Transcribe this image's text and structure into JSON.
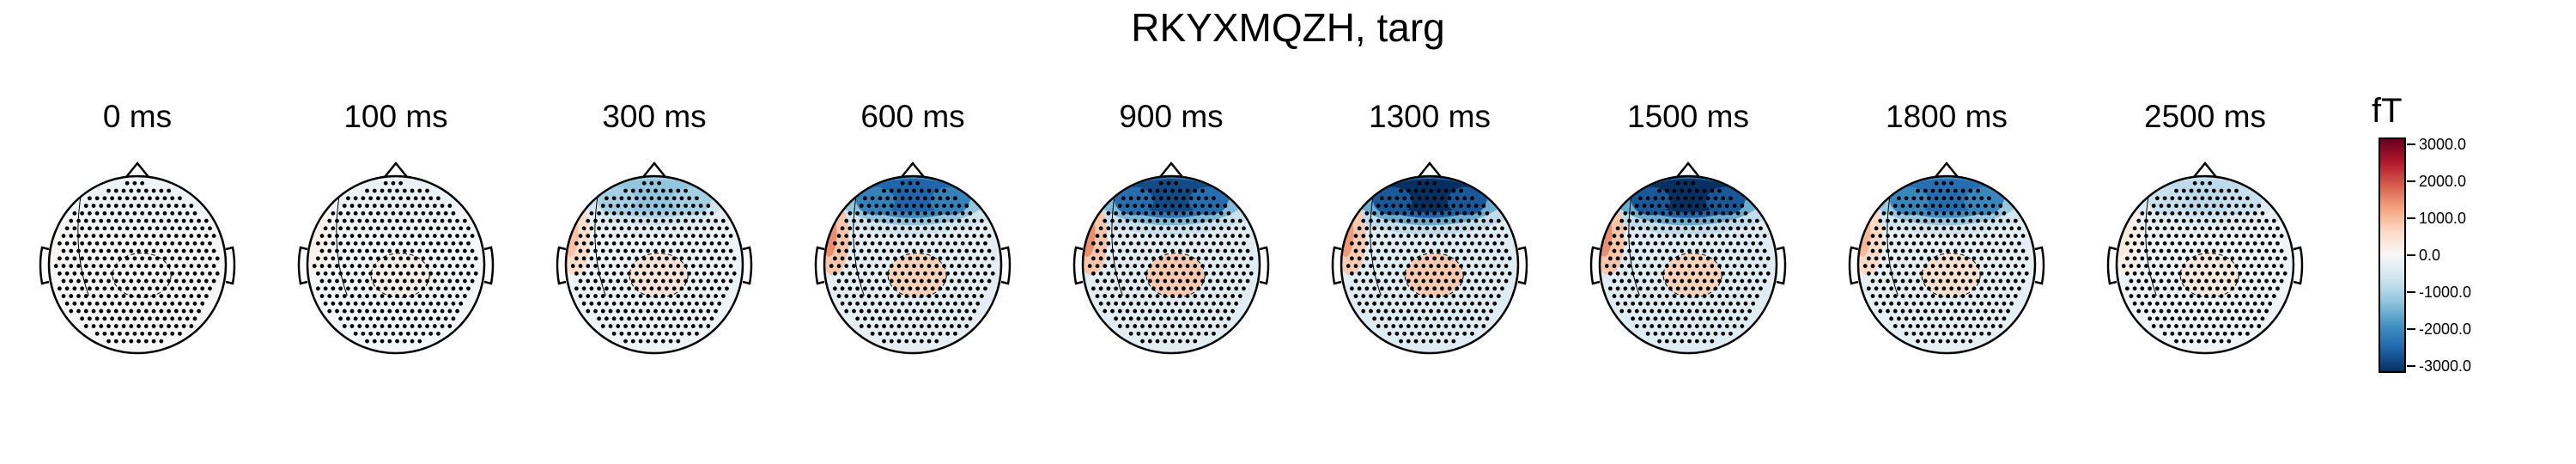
{
  "title": "RKYXMQZH, targ",
  "colorbar": {
    "unit": "fT",
    "tick_labels": [
      "3000.0",
      "2000.0",
      "1000.0",
      "0.0",
      "-1000.0",
      "-2000.0",
      "-3000.0"
    ],
    "colormap": [
      "#67001f",
      "#b2182b",
      "#d6604d",
      "#f4a582",
      "#fddbc7",
      "#f7f7f7",
      "#d1e5f0",
      "#92c5de",
      "#4393c3",
      "#2166ac",
      "#053061"
    ]
  },
  "chart_data": {
    "type": "heatmap",
    "title": "RKYXMQZH, targ",
    "unit": "fT",
    "vlim": [
      -3000,
      3000
    ],
    "times_ms": [
      0,
      100,
      300,
      600,
      900,
      1300,
      1500,
      1800,
      2500
    ],
    "time_labels": [
      "0 ms",
      "100 ms",
      "300 ms",
      "600 ms",
      "900 ms",
      "1300 ms",
      "1500 ms",
      "1800 ms",
      "2500 ms"
    ],
    "frontal_peak_fT": [
      -150,
      -200,
      -1200,
      -2400,
      -2700,
      -3000,
      -3000,
      -2300,
      -800
    ],
    "left_temporal_fT": [
      50,
      150,
      900,
      1400,
      1400,
      1300,
      1400,
      1000,
      300
    ],
    "central_fT": [
      0,
      150,
      400,
      700,
      800,
      800,
      700,
      500,
      300
    ]
  }
}
